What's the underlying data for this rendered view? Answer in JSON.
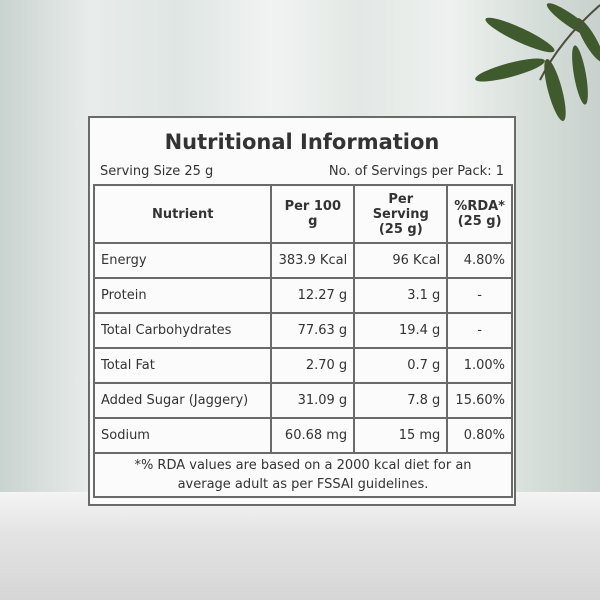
{
  "label": {
    "title": "Nutritional Information",
    "serving_size": "Serving Size 25 g",
    "servings_per_pack": "No. of Servings per Pack: 1",
    "table": {
      "header": [
        "Nutrient",
        "Per 100 g",
        "Per Serving (25 g)",
        "%RDA* (25 g)"
      ],
      "rows": [
        [
          "Energy",
          "383.9 Kcal",
          "96 Kcal",
          "4.80%"
        ],
        [
          "Protein",
          "12.27 g",
          "3.1 g",
          "-"
        ],
        [
          "Total Carbohydrates",
          "77.63 g",
          "19.4 g",
          "-"
        ],
        [
          "Total Fat",
          "2.70 g",
          "0.7 g",
          "1.00%"
        ],
        [
          "Added Sugar (Jaggery)",
          "31.09 g",
          "7.8 g",
          "15.60%"
        ],
        [
          "Sodium",
          "60.68 mg",
          "15 mg",
          "0.80%"
        ]
      ]
    },
    "footnote": "*% RDA values are based on a 2000 kcal diet for an average adult as per FSSAI guidelines."
  }
}
